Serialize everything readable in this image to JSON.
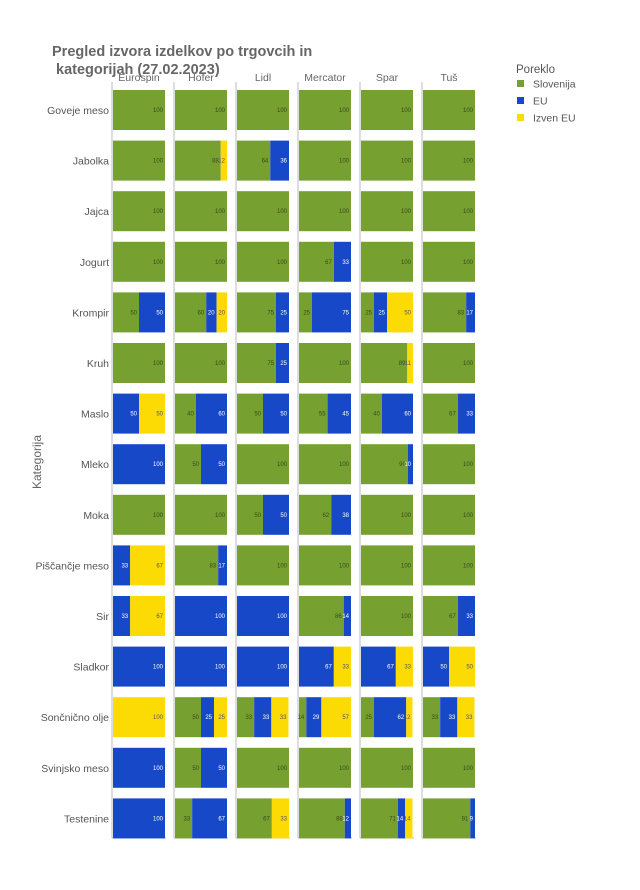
{
  "chart_data": {
    "type": "bar",
    "orientation": "horizontal",
    "stacked": "percent",
    "title_lines": [
      "Pregled izvora izdelkov po trgovcih in",
      " kategorijah (27.02.2023)"
    ],
    "ylabel": "Kategorija",
    "legend": {
      "title": "Poreklo",
      "position": "top-right",
      "items": [
        {
          "name": "Slovenija",
          "color": "#76a030"
        },
        {
          "name": "EU",
          "color": "#1748c8"
        },
        {
          "name": "Izven EU",
          "color": "#fcdb05"
        }
      ]
    },
    "stores": [
      "Eurospin",
      "Hofer",
      "Lidl",
      "Mercator",
      "Spar",
      "Tuš"
    ],
    "categories": [
      "Goveje meso",
      "Jabolka",
      "Jajca",
      "Jogurt",
      "Krompir",
      "Kruh",
      "Maslo",
      "Mleko",
      "Moka",
      "Piščančje meso",
      "Sir",
      "Sladkor",
      "Sončnično olje",
      "Svinjsko meso",
      "Testenine"
    ],
    "series": [
      {
        "name": "Slovenija",
        "values": [
          [
            100,
            100,
            100,
            100,
            100,
            100
          ],
          [
            100,
            88,
            64,
            100,
            100,
            100
          ],
          [
            100,
            100,
            100,
            100,
            100,
            100
          ],
          [
            100,
            100,
            100,
            67,
            100,
            100
          ],
          [
            50,
            60,
            75,
            25,
            25,
            83
          ],
          [
            100,
            100,
            75,
            100,
            89,
            100
          ],
          [
            0,
            40,
            50,
            55,
            40,
            67
          ],
          [
            0,
            50,
            100,
            100,
            90,
            100
          ],
          [
            100,
            100,
            50,
            62,
            100,
            100
          ],
          [
            0,
            83,
            100,
            100,
            100,
            100
          ],
          [
            0,
            0,
            0,
            86,
            100,
            67
          ],
          [
            0,
            0,
            0,
            0,
            0,
            0
          ],
          [
            0,
            50,
            33,
            14,
            25,
            33
          ],
          [
            0,
            50,
            100,
            100,
            100,
            100
          ],
          [
            0,
            33,
            67,
            88,
            71,
            91
          ]
        ]
      },
      {
        "name": "EU",
        "values": [
          [
            0,
            0,
            0,
            0,
            0,
            0
          ],
          [
            0,
            0,
            36,
            0,
            0,
            0
          ],
          [
            0,
            0,
            0,
            0,
            0,
            0
          ],
          [
            0,
            0,
            0,
            33,
            0,
            0
          ],
          [
            50,
            20,
            25,
            75,
            25,
            17
          ],
          [
            0,
            0,
            25,
            0,
            0,
            0
          ],
          [
            50,
            60,
            50,
            45,
            60,
            33
          ],
          [
            100,
            50,
            0,
            0,
            10,
            0
          ],
          [
            0,
            0,
            50,
            38,
            0,
            0
          ],
          [
            33,
            17,
            0,
            0,
            0,
            0
          ],
          [
            33,
            100,
            100,
            14,
            0,
            33
          ],
          [
            100,
            100,
            100,
            67,
            67,
            50
          ],
          [
            0,
            25,
            33,
            29,
            62,
            33
          ],
          [
            100,
            50,
            0,
            0,
            0,
            0
          ],
          [
            100,
            67,
            0,
            12,
            14,
            9
          ]
        ]
      },
      {
        "name": "Izven EU",
        "values": [
          [
            0,
            0,
            0,
            0,
            0,
            0
          ],
          [
            0,
            12,
            0,
            0,
            0,
            0
          ],
          [
            0,
            0,
            0,
            0,
            0,
            0
          ],
          [
            0,
            0,
            0,
            0,
            0,
            0
          ],
          [
            0,
            20,
            0,
            0,
            50,
            0
          ],
          [
            0,
            0,
            0,
            0,
            11,
            0
          ],
          [
            50,
            0,
            0,
            0,
            0,
            0
          ],
          [
            0,
            0,
            0,
            0,
            0,
            0
          ],
          [
            0,
            0,
            0,
            0,
            0,
            0
          ],
          [
            67,
            0,
            0,
            0,
            0,
            0
          ],
          [
            67,
            0,
            0,
            0,
            0,
            0
          ],
          [
            0,
            0,
            0,
            33,
            33,
            50
          ],
          [
            100,
            25,
            33,
            57,
            12,
            33
          ],
          [
            0,
            0,
            0,
            0,
            0,
            0
          ],
          [
            0,
            0,
            33,
            0,
            14,
            0
          ]
        ]
      }
    ]
  }
}
